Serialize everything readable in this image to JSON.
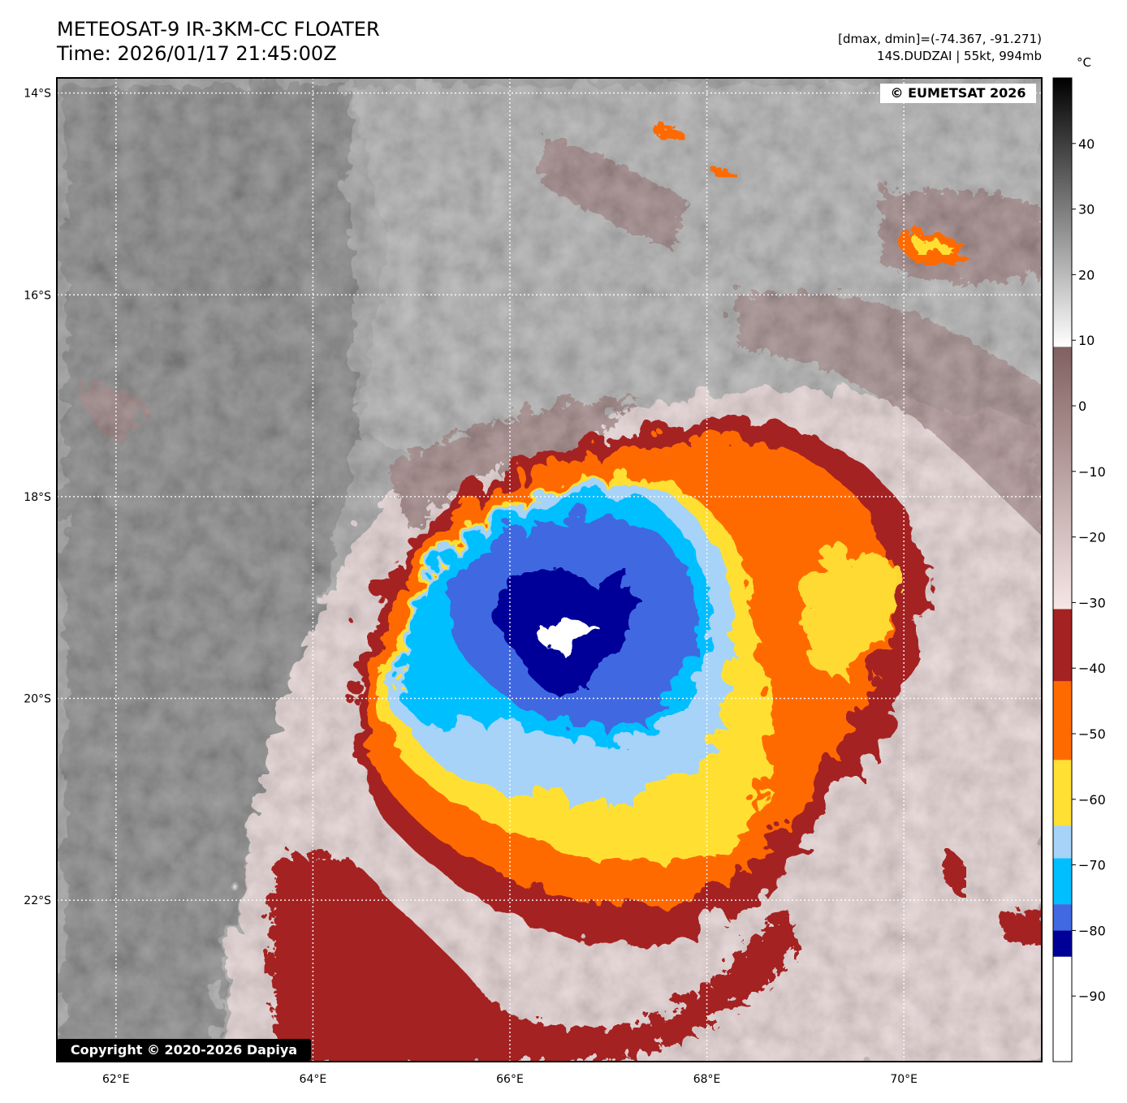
{
  "header": {
    "title": "METEOSAT-9 IR-3KM-CC FLOATER",
    "time": "Time: 2026/01/17 21:45:00Z",
    "range_info": "[dmax, dmin]=(-74.367, -91.271)",
    "storm_info": "14S.DUDZAI | 55kt, 994mb"
  },
  "map": {
    "watermark_top": "© EUMETSAT 2026",
    "watermark_bottom": "Copyright © 2020-2026 Dapiya",
    "lon_range": [
      61.4,
      71.4
    ],
    "lat_range": [
      -23.6,
      -13.85
    ],
    "lon_ticks": [
      {
        "value": 62,
        "label": "62°E"
      },
      {
        "value": 64,
        "label": "64°E"
      },
      {
        "value": 66,
        "label": "66°E"
      },
      {
        "value": 68,
        "label": "68°E"
      },
      {
        "value": 70,
        "label": "70°E"
      }
    ],
    "lat_ticks": [
      {
        "value": -14,
        "label": "14°S"
      },
      {
        "value": -16,
        "label": "16°S"
      },
      {
        "value": -18,
        "label": "18°S"
      },
      {
        "value": -20,
        "label": "20°S"
      },
      {
        "value": -22,
        "label": "22°S"
      }
    ],
    "storm_center": {
      "lon": 66.5,
      "lat": -19.3
    }
  },
  "colorbar": {
    "unit": "°C",
    "range": [
      -100,
      50
    ],
    "ticks": [
      {
        "value": 40,
        "label": "40"
      },
      {
        "value": 30,
        "label": "30"
      },
      {
        "value": 20,
        "label": "20"
      },
      {
        "value": 10,
        "label": "10"
      },
      {
        "value": 0,
        "label": "0"
      },
      {
        "value": -10,
        "label": "−10"
      },
      {
        "value": -20,
        "label": "−20"
      },
      {
        "value": -30,
        "label": "−30"
      },
      {
        "value": -40,
        "label": "−40"
      },
      {
        "value": -50,
        "label": "−50"
      },
      {
        "value": -60,
        "label": "−60"
      },
      {
        "value": -70,
        "label": "−70"
      },
      {
        "value": -80,
        "label": "−80"
      },
      {
        "value": -90,
        "label": "−90"
      }
    ],
    "bands": [
      {
        "from": -100,
        "to": -84,
        "color": "#ffffff"
      },
      {
        "from": -84,
        "to": -80,
        "color": "#000099"
      },
      {
        "from": -80,
        "to": -76,
        "color": "#4169e1"
      },
      {
        "from": -76,
        "to": -69,
        "color": "#00bfff"
      },
      {
        "from": -69,
        "to": -64,
        "color": "#a6d3f7"
      },
      {
        "from": -64,
        "to": -54,
        "color": "#ffe033"
      },
      {
        "from": -54,
        "to": -42,
        "color": "#ff6a00"
      },
      {
        "from": -42,
        "to": -31,
        "color": "#a52222"
      }
    ],
    "gradients": [
      {
        "from": -31,
        "to": 9,
        "stops": [
          "#f6e6e6",
          "#816060"
        ]
      },
      {
        "from": 9,
        "to": 50,
        "stops": [
          "#ffffff",
          "#000000"
        ]
      }
    ]
  }
}
